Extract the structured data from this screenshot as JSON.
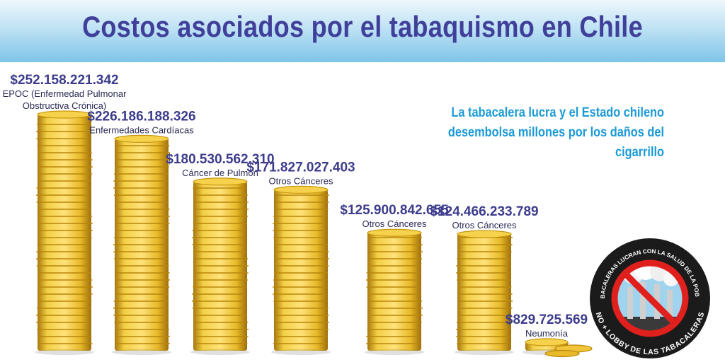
{
  "header": {
    "title": "Costos asociados por el tabaquismo en Chile",
    "subtitle": "La tabacalera lucra y el Estado chileno desembolsa millones por los daños del cigarrillo"
  },
  "badge": {
    "top_text": "LAS TABACALERAS LUCRAN CON LA SALUD DE LA POBLACIÓN",
    "bottom_text": "NO + LOBBY DE LAS TABACALERAS",
    "icon": "no-smoking-factory-icon"
  },
  "colors": {
    "header_blue": "#7ec4e8",
    "title": "#40409a",
    "subtitle": "#1a9ad6",
    "coin": "#e8b928",
    "coin_dark": "#b8860b"
  },
  "chart_data": {
    "type": "bar",
    "title": "Costos asociados por el tabaquismo en Chile",
    "xlabel": "",
    "ylabel": "",
    "grid": false,
    "categories": [
      "EPOC (Enfermedad Pulmonar Obstructiva Crónica)",
      "Enfermedades Cardíacas",
      "Cáncer de Pulmón",
      "Otros Cánceres",
      "Otros Cánceres",
      "Otros Cánceres",
      "Neumonía"
    ],
    "category_lines": [
      [
        "EPOC (Enfermedad Pulmonar",
        "Obstructiva Crónica)"
      ],
      [
        "Enfermedades Cardíacas"
      ],
      [
        "Cáncer de Pulmón"
      ],
      [
        "Otros Cánceres"
      ],
      [
        "Otros Cánceres"
      ],
      [
        "Otros Cánceres"
      ],
      [
        "Neumonía"
      ]
    ],
    "value_labels": [
      "$252.158.221.342",
      "$226.186.188.326",
      "$180.530.562.310",
      "$171.827.027.403",
      "$125.900.842.655",
      "$124.466.233.789",
      "$829.725.569"
    ],
    "values": [
      252158221342,
      226186188326,
      180530562310,
      171827027403,
      125900842655,
      124466233789,
      829725569
    ]
  }
}
